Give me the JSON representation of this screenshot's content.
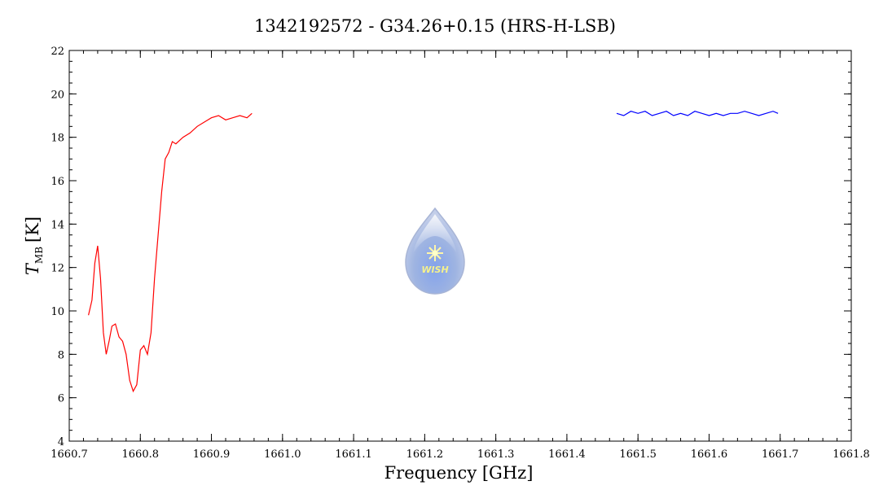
{
  "chart_data": {
    "type": "line",
    "title": "1342192572 - G34.26+0.15 (HRS-H-LSB)",
    "xlabel": "Frequency [GHz]",
    "ylabel_main": "T",
    "ylabel_sub": "MB",
    "ylabel_unit": "[K]",
    "xlim": [
      1660.7,
      1661.8
    ],
    "ylim": [
      4,
      22
    ],
    "x_ticks": [
      "1660.7",
      "1660.8",
      "1660.9",
      "1661.0",
      "1661.1",
      "1661.2",
      "1661.3",
      "1661.4",
      "1661.5",
      "1661.6",
      "1661.7",
      "1661.8"
    ],
    "y_ticks": [
      "4",
      "6",
      "8",
      "10",
      "12",
      "14",
      "16",
      "18",
      "20",
      "22"
    ],
    "grid": false,
    "series": [
      {
        "color": "#ff0000",
        "x": [
          1660.727,
          1660.732,
          1660.736,
          1660.74,
          1660.744,
          1660.748,
          1660.752,
          1660.756,
          1660.76,
          1660.765,
          1660.77,
          1660.775,
          1660.78,
          1660.785,
          1660.79,
          1660.795,
          1660.8,
          1660.805,
          1660.81,
          1660.815,
          1660.82,
          1660.825,
          1660.83,
          1660.835,
          1660.84,
          1660.845,
          1660.85,
          1660.86,
          1660.87,
          1660.88,
          1660.89,
          1660.9,
          1660.91,
          1660.92,
          1660.93,
          1660.94,
          1660.95,
          1660.957
        ],
        "y": [
          9.8,
          10.5,
          12.2,
          13.0,
          11.5,
          9.0,
          8.0,
          8.6,
          9.3,
          9.4,
          8.8,
          8.6,
          8.0,
          6.8,
          6.3,
          6.6,
          8.2,
          8.4,
          8.0,
          9.0,
          11.5,
          13.5,
          15.5,
          17.0,
          17.3,
          17.8,
          17.7,
          18.0,
          18.2,
          18.5,
          18.7,
          18.9,
          19.0,
          18.8,
          18.9,
          19.0,
          18.9,
          19.1
        ]
      },
      {
        "color": "#0000ff",
        "x": [
          1661.47,
          1661.48,
          1661.49,
          1661.5,
          1661.51,
          1661.52,
          1661.53,
          1661.54,
          1661.55,
          1661.56,
          1661.57,
          1661.58,
          1661.59,
          1661.6,
          1661.61,
          1661.62,
          1661.63,
          1661.64,
          1661.65,
          1661.66,
          1661.67,
          1661.68,
          1661.69,
          1661.697
        ],
        "y": [
          19.1,
          19.0,
          19.2,
          19.1,
          19.2,
          19.0,
          19.1,
          19.2,
          19.0,
          19.1,
          19.0,
          19.2,
          19.1,
          19.0,
          19.1,
          19.0,
          19.1,
          19.1,
          19.2,
          19.1,
          19.0,
          19.1,
          19.2,
          19.1
        ]
      }
    ],
    "logo_text": "WISH"
  }
}
